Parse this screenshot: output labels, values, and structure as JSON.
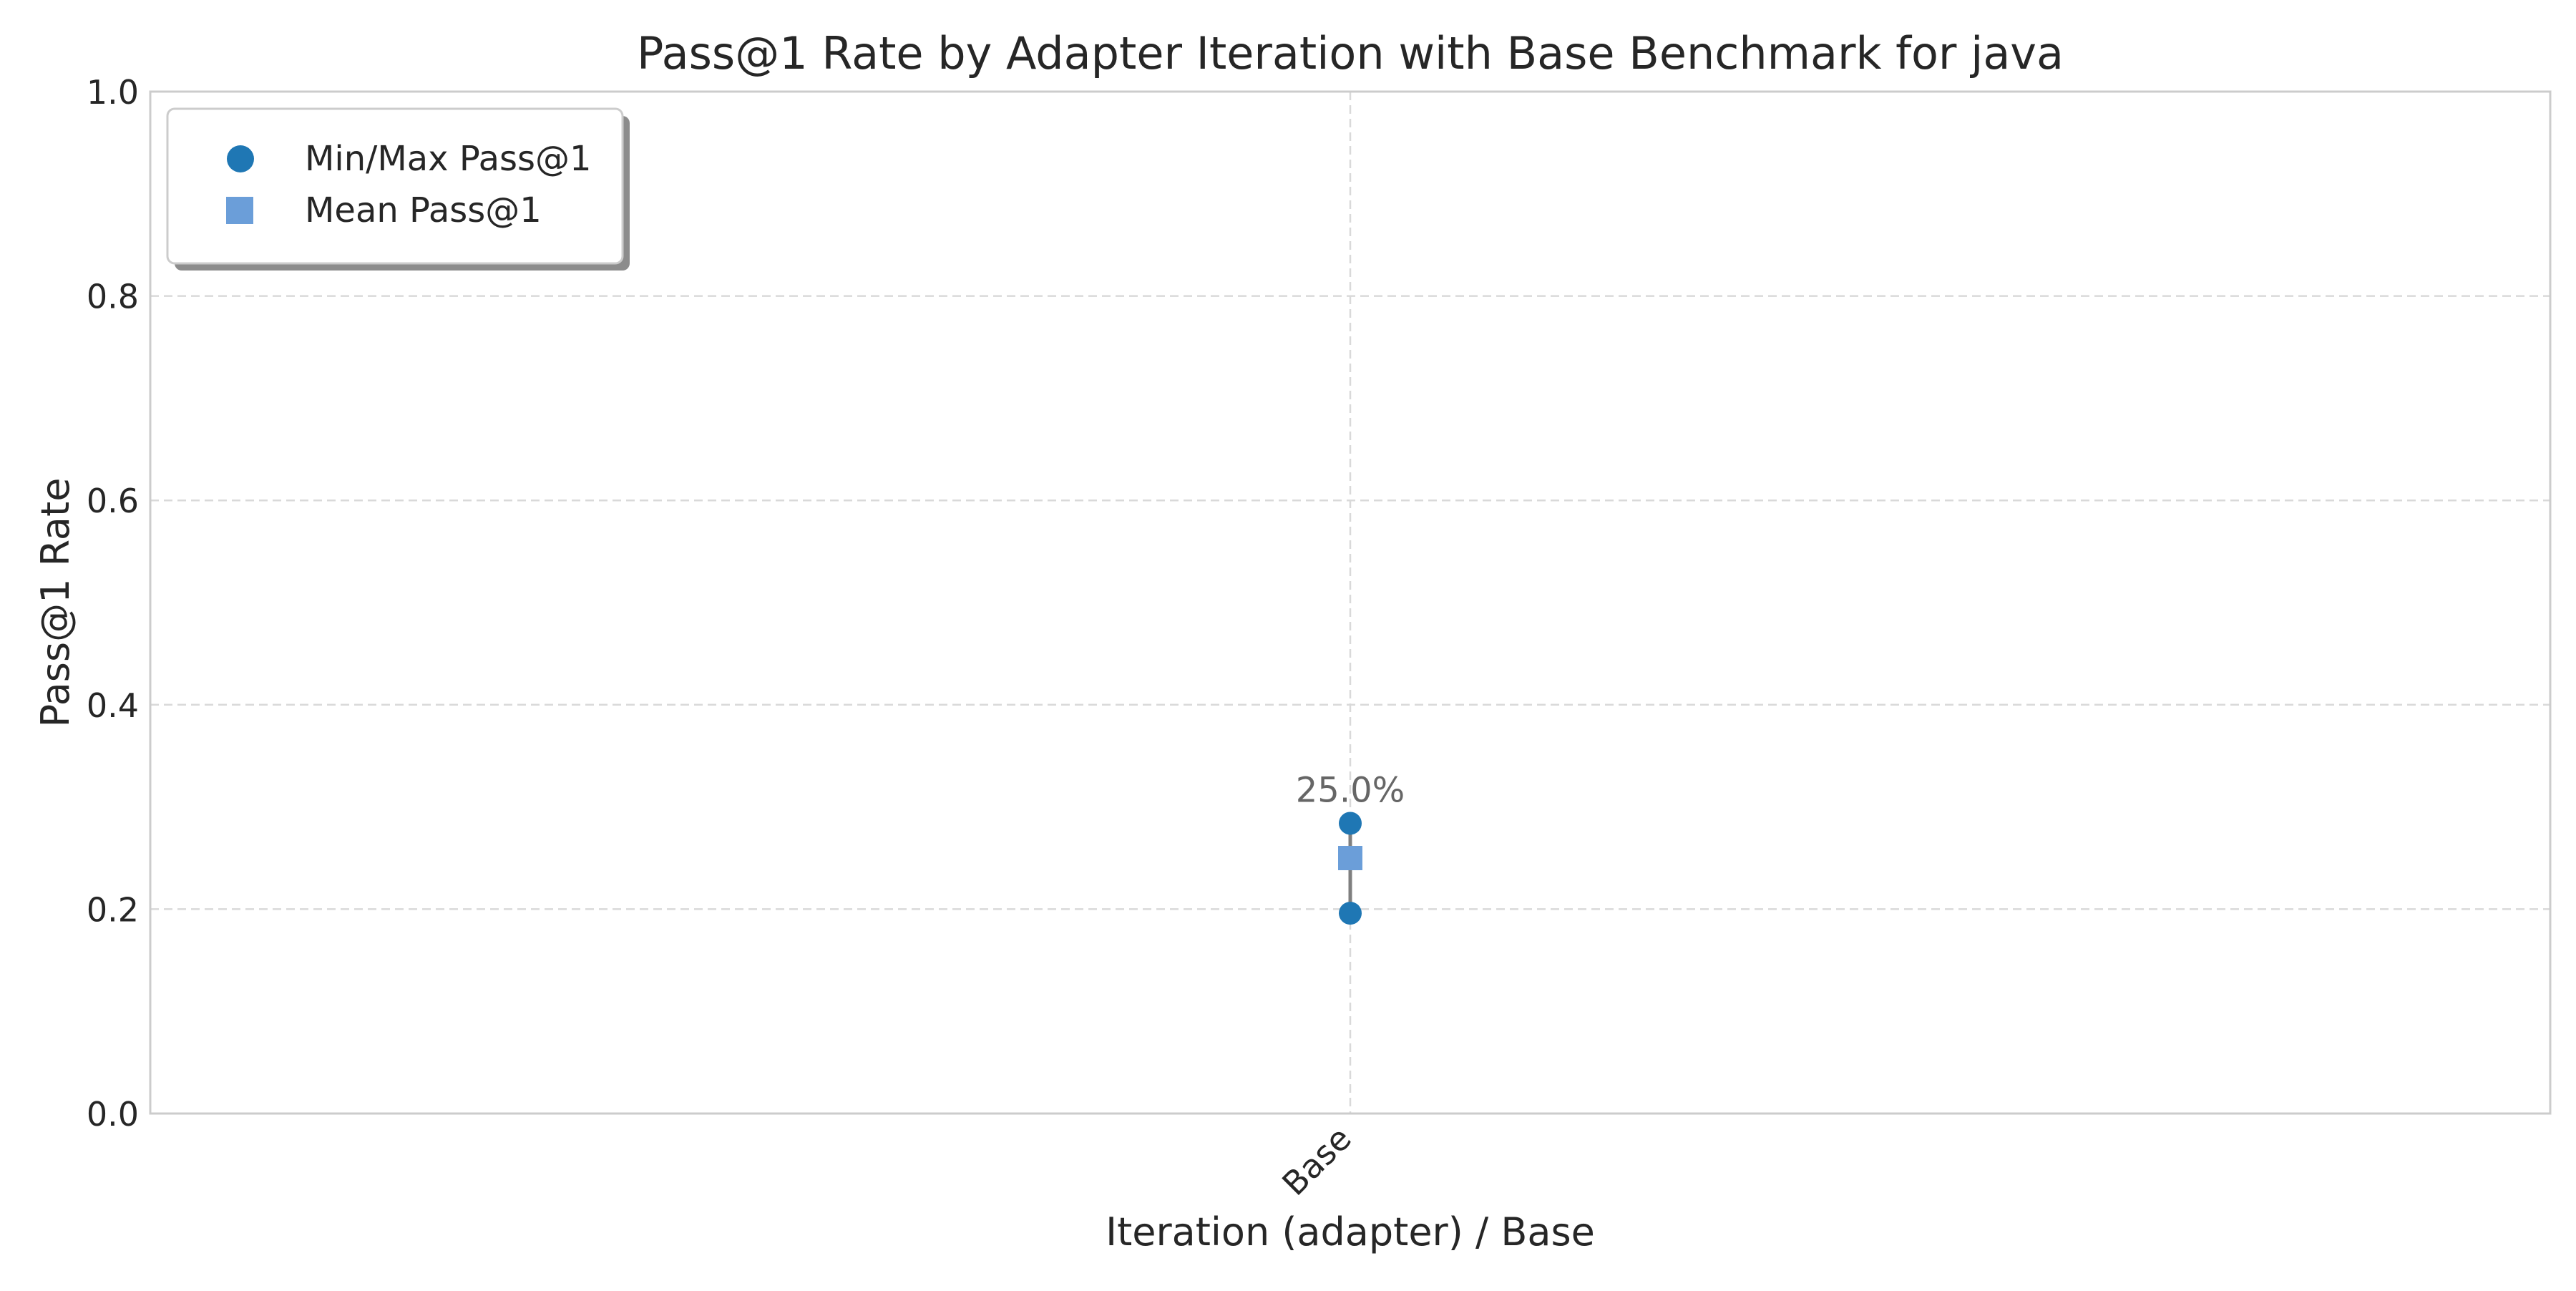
{
  "chart_data": {
    "type": "scatter",
    "title": "Pass@1 Rate by Adapter Iteration with Base Benchmark for java",
    "xlabel": "Iteration (adapter) / Base",
    "ylabel": "Pass@1 Rate",
    "ylim": [
      0.0,
      1.0
    ],
    "yticks": [
      "0.0",
      "0.2",
      "0.4",
      "0.6",
      "0.8",
      "1.0"
    ],
    "categories": [
      "Base"
    ],
    "grid": true,
    "legend_position": "top-left",
    "series": [
      {
        "name": "Min/Max Pass@1",
        "marker": "circle",
        "color": "#1f77b4",
        "points": [
          {
            "category": "Base",
            "min": 0.196,
            "max": 0.284
          }
        ]
      },
      {
        "name": "Mean Pass@1",
        "marker": "square",
        "color": "#6b9ed9",
        "points": [
          {
            "category": "Base",
            "value": 0.25
          }
        ]
      }
    ],
    "annotations": [
      {
        "category": "Base",
        "text": "25.0%"
      }
    ],
    "range_line_color": "#7f7f7f"
  }
}
